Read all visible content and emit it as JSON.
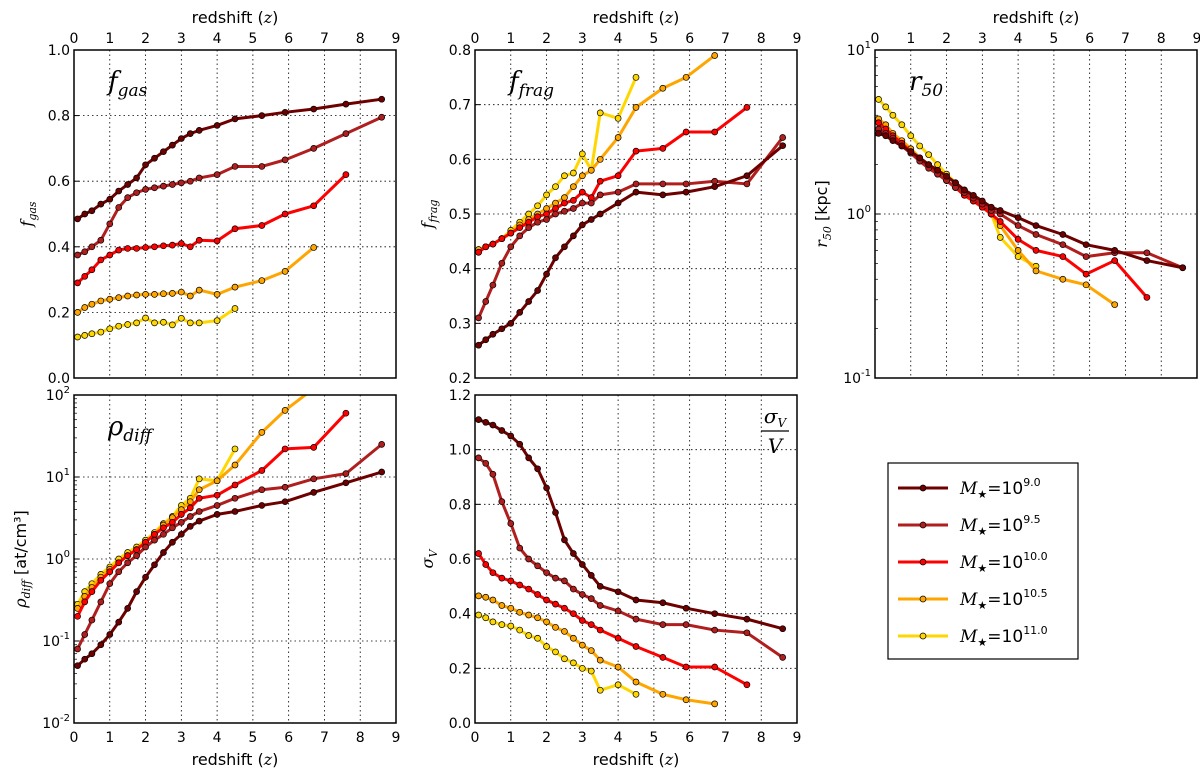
{
  "chart_data": {
    "type": "line",
    "x_label_main": "redshift (",
    "x_label_var": "z",
    "x_label_close": ")",
    "xlim": [
      0,
      9
    ],
    "x_ticks": [
      "0",
      "1",
      "2",
      "3",
      "4",
      "5",
      "6",
      "7",
      "8",
      "9"
    ],
    "grid": true,
    "z": [
      0.1,
      0.3,
      0.5,
      0.75,
      1,
      1.25,
      1.5,
      1.75,
      2,
      2.25,
      2.5,
      2.75,
      3,
      3.25,
      3.5,
      4,
      4.5,
      5.25,
      5.9,
      6.7,
      7.6,
      8.6
    ],
    "series_styles": [
      {
        "name": "M9.0",
        "color": "#6e0000"
      },
      {
        "name": "M9.5",
        "color": "#b01e1e"
      },
      {
        "name": "M10.0",
        "color": "#ff0000"
      },
      {
        "name": "M10.5",
        "color": "#ffa500"
      },
      {
        "name": "M11.0",
        "color": "#ffd700"
      }
    ],
    "legend": {
      "placement": "right",
      "entries": [
        {
          "base": "M",
          "sub": "★",
          "eq": "=10",
          "exp": "9.0"
        },
        {
          "base": "M",
          "sub": "★",
          "eq": "=10",
          "exp": "9.5"
        },
        {
          "base": "M",
          "sub": "★",
          "eq": "=10",
          "exp": "10.0"
        },
        {
          "base": "M",
          "sub": "★",
          "eq": "=10",
          "exp": "10.5"
        },
        {
          "base": "M",
          "sub": "★",
          "eq": "=10",
          "exp": "11.0"
        }
      ]
    },
    "panels": [
      {
        "id": "fgas",
        "title_main": "f",
        "title_sub": "gas",
        "ylabel_main": "f",
        "ylabel_sub": "gas",
        "ylabel_unit": "",
        "yscale": "linear",
        "ylim": [
          0,
          1.0
        ],
        "y_ticks": [
          "0.0",
          "0.2",
          "0.4",
          "0.6",
          "0.8",
          "1.0"
        ],
        "x_axis": "top",
        "series": [
          [
            0.485,
            0.5,
            0.51,
            0.53,
            0.545,
            0.57,
            0.59,
            0.61,
            0.65,
            0.67,
            0.69,
            0.71,
            0.73,
            0.745,
            0.755,
            0.77,
            0.79,
            0.8,
            0.81,
            0.82,
            0.835,
            0.85
          ],
          [
            0.375,
            0.385,
            0.4,
            0.42,
            0.47,
            0.52,
            0.55,
            0.565,
            0.575,
            0.58,
            0.585,
            0.59,
            0.595,
            0.6,
            0.61,
            0.62,
            0.645,
            0.645,
            0.665,
            0.7,
            0.745,
            0.795
          ],
          [
            0.29,
            0.31,
            0.33,
            0.36,
            0.375,
            0.39,
            0.395,
            0.395,
            0.398,
            0.4,
            0.403,
            0.405,
            0.41,
            0.4,
            0.42,
            0.418,
            0.455,
            0.465,
            0.5,
            0.525,
            0.62
          ],
          [
            0.2,
            0.215,
            0.225,
            0.235,
            0.24,
            0.245,
            0.25,
            0.253,
            0.255,
            0.255,
            0.257,
            0.258,
            0.262,
            0.25,
            0.268,
            0.255,
            0.277,
            0.297,
            0.325,
            0.398
          ],
          [
            0.125,
            0.13,
            0.135,
            0.14,
            0.15,
            0.158,
            0.163,
            0.168,
            0.183,
            0.168,
            0.17,
            0.162,
            0.182,
            0.168,
            0.168,
            0.175,
            0.212
          ]
        ]
      },
      {
        "id": "ffrag",
        "title_main": "f",
        "title_sub": "frag",
        "ylabel_main": "f",
        "ylabel_sub": "frag",
        "ylabel_unit": "",
        "yscale": "linear",
        "ylim": [
          0.2,
          0.8
        ],
        "y_ticks": [
          "0.2",
          "0.3",
          "0.4",
          "0.5",
          "0.6",
          "0.7",
          "0.8"
        ],
        "x_axis": "top",
        "series": [
          [
            0.26,
            0.27,
            0.28,
            0.29,
            0.3,
            0.32,
            0.34,
            0.36,
            0.39,
            0.42,
            0.44,
            0.46,
            0.48,
            0.49,
            0.5,
            0.52,
            0.54,
            0.535,
            0.54,
            0.55,
            0.57,
            0.625
          ],
          [
            0.31,
            0.34,
            0.37,
            0.41,
            0.44,
            0.46,
            0.475,
            0.485,
            0.49,
            0.5,
            0.505,
            0.51,
            0.52,
            0.52,
            0.535,
            0.54,
            0.555,
            0.555,
            0.555,
            0.56,
            0.555,
            0.64
          ],
          [
            0.43,
            0.44,
            0.445,
            0.455,
            0.465,
            0.475,
            0.485,
            0.495,
            0.5,
            0.51,
            0.52,
            0.525,
            0.54,
            0.53,
            0.56,
            0.57,
            0.615,
            0.62,
            0.65,
            0.65,
            0.695
          ],
          [
            0.435,
            0.44,
            0.445,
            0.455,
            0.465,
            0.48,
            0.49,
            0.5,
            0.51,
            0.52,
            0.53,
            0.55,
            0.57,
            0.58,
            0.6,
            0.64,
            0.695,
            0.73,
            0.75,
            0.79
          ],
          [
            0.43,
            0.44,
            0.445,
            0.455,
            0.47,
            0.485,
            0.5,
            0.515,
            0.535,
            0.55,
            0.57,
            0.575,
            0.61,
            0.58,
            0.685,
            0.675,
            0.75
          ]
        ]
      },
      {
        "id": "r50",
        "title_main": "r",
        "title_sub": "50",
        "ylabel_main": "r",
        "ylabel_sub": "50",
        "ylabel_unit": " [kpc]",
        "yscale": "log",
        "ylim": [
          0.1,
          10
        ],
        "y_ticks": [
          "-1",
          "0",
          "1"
        ],
        "x_axis": "top",
        "series": [
          [
            3.1,
            3.0,
            2.8,
            2.6,
            2.4,
            2.2,
            2.0,
            1.85,
            1.7,
            1.55,
            1.4,
            1.3,
            1.2,
            1.1,
            1.05,
            0.95,
            0.85,
            0.75,
            0.65,
            0.6,
            0.52,
            0.47
          ],
          [
            3.3,
            3.1,
            2.9,
            2.6,
            2.35,
            2.1,
            1.9,
            1.75,
            1.6,
            1.45,
            1.35,
            1.25,
            1.15,
            1.05,
            1.0,
            0.85,
            0.75,
            0.65,
            0.55,
            0.58,
            0.58,
            0.47
          ],
          [
            3.6,
            3.3,
            3.0,
            2.7,
            2.4,
            2.15,
            1.95,
            1.75,
            1.6,
            1.45,
            1.3,
            1.2,
            1.1,
            1.0,
            0.9,
            0.7,
            0.6,
            0.55,
            0.43,
            0.52,
            0.31
          ],
          [
            3.8,
            3.5,
            3.1,
            2.8,
            2.5,
            2.2,
            2.0,
            1.8,
            1.6,
            1.45,
            1.3,
            1.2,
            1.1,
            1.0,
            0.85,
            0.6,
            0.45,
            0.4,
            0.37,
            0.28
          ],
          [
            5.0,
            4.5,
            4.0,
            3.5,
            3.0,
            2.6,
            2.3,
            2.0,
            1.75,
            1.55,
            1.4,
            1.25,
            1.15,
            1.0,
            0.72,
            0.55,
            0.48
          ]
        ]
      },
      {
        "id": "rho",
        "title_main": "ρ",
        "title_sub": "diff",
        "ylabel_main": "ρ",
        "ylabel_sub": "diff",
        "ylabel_unit": " [at/cm³]",
        "yscale": "log",
        "ylim": [
          0.01,
          100
        ],
        "y_ticks": [
          "-2",
          "-1",
          "0",
          "1",
          "2"
        ],
        "x_axis": "bottom",
        "series": [
          [
            0.05,
            0.06,
            0.07,
            0.09,
            0.12,
            0.17,
            0.25,
            0.4,
            0.6,
            0.85,
            1.2,
            1.6,
            2.0,
            2.5,
            2.9,
            3.5,
            3.8,
            4.5,
            5.0,
            6.5,
            8.5,
            11.5
          ],
          [
            0.08,
            0.12,
            0.18,
            0.3,
            0.5,
            0.7,
            0.9,
            1.1,
            1.4,
            1.7,
            2.0,
            2.4,
            2.8,
            3.3,
            3.8,
            4.5,
            5.5,
            7,
            7.5,
            9.5,
            11,
            25
          ],
          [
            0.2,
            0.3,
            0.4,
            0.55,
            0.7,
            0.9,
            1.1,
            1.3,
            1.6,
            2,
            2.4,
            2.8,
            3.5,
            4.2,
            5.5,
            6,
            8,
            12,
            22,
            23,
            60
          ],
          [
            0.25,
            0.35,
            0.45,
            0.6,
            0.75,
            0.9,
            1.1,
            1.3,
            1.6,
            2.0,
            2.6,
            3.2,
            4,
            5,
            7,
            9,
            14,
            35,
            65,
            120
          ],
          [
            0.28,
            0.4,
            0.5,
            0.65,
            0.8,
            1.0,
            1.2,
            1.4,
            1.7,
            2.1,
            2.7,
            3.3,
            4.5,
            5.5,
            9.5,
            9,
            22
          ]
        ]
      },
      {
        "id": "sigmav",
        "title_main": "σ",
        "title_sub": "V",
        "title_den": "V",
        "ylabel_main": "σ",
        "ylabel_sub": "V",
        "ylabel_unit": "",
        "yscale": "linear",
        "ylim": [
          0,
          1.2
        ],
        "y_ticks": [
          "0.0",
          "0.2",
          "0.4",
          "0.6",
          "0.8",
          "1.0",
          "1.2"
        ],
        "x_axis": "bottom",
        "series": [
          [
            1.11,
            1.1,
            1.09,
            1.07,
            1.05,
            1.02,
            0.97,
            0.93,
            0.86,
            0.77,
            0.67,
            0.62,
            0.58,
            0.54,
            0.5,
            0.48,
            0.45,
            0.44,
            0.42,
            0.4,
            0.38,
            0.345
          ],
          [
            0.97,
            0.95,
            0.91,
            0.81,
            0.73,
            0.64,
            0.6,
            0.575,
            0.55,
            0.53,
            0.52,
            0.49,
            0.47,
            0.455,
            0.43,
            0.41,
            0.38,
            0.36,
            0.36,
            0.34,
            0.33,
            0.24
          ],
          [
            0.62,
            0.58,
            0.55,
            0.53,
            0.52,
            0.505,
            0.49,
            0.47,
            0.45,
            0.435,
            0.42,
            0.4,
            0.375,
            0.36,
            0.34,
            0.31,
            0.28,
            0.24,
            0.205,
            0.205,
            0.14
          ],
          [
            0.465,
            0.46,
            0.45,
            0.43,
            0.42,
            0.405,
            0.395,
            0.385,
            0.37,
            0.35,
            0.335,
            0.31,
            0.285,
            0.265,
            0.23,
            0.205,
            0.15,
            0.105,
            0.085,
            0.07
          ],
          [
            0.395,
            0.385,
            0.37,
            0.36,
            0.355,
            0.34,
            0.32,
            0.31,
            0.28,
            0.26,
            0.235,
            0.22,
            0.2,
            0.19,
            0.12,
            0.14,
            0.105
          ]
        ]
      }
    ]
  }
}
